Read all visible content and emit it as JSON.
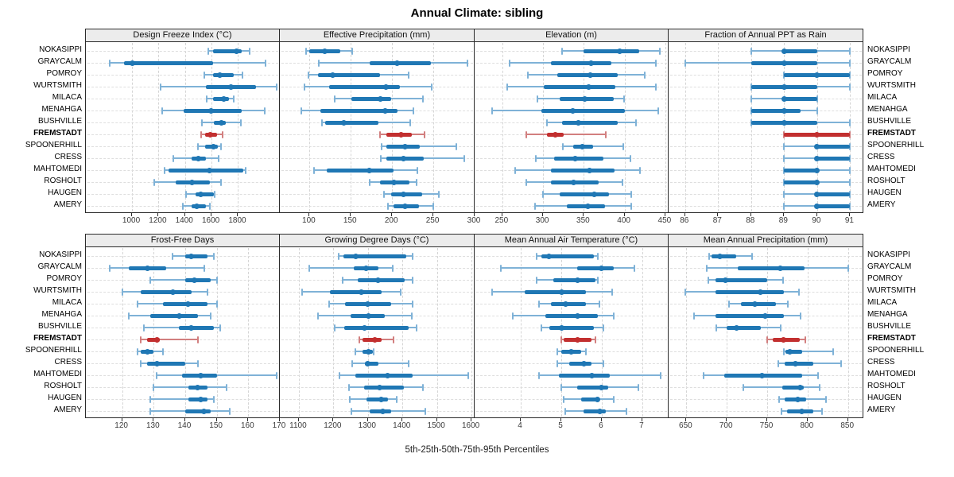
{
  "title": "Annual Climate: sibling",
  "x_axis_label": "5th-25th-50th-75th-95th Percentiles",
  "sites": [
    "NOKASIPPI",
    "GRAYCALM",
    "POMROY",
    "WURTSMITH",
    "MILACA",
    "MENAHGA",
    "BUSHVILLE",
    "FREMSTADT",
    "SPOONERHILL",
    "CRESS",
    "MAHTOMEDI",
    "ROSHOLT",
    "HAUGEN",
    "AMERY"
  ],
  "highlight_site": "FREMSTADT",
  "colors": {
    "series_bar": "#1f77b4",
    "series_whisker": "#7fb2d7",
    "highlight_bar": "#c22f2f",
    "highlight_whisker": "#d27f7f",
    "header_bg": "#ececec",
    "panel_border": "#2b2b2b",
    "gridline": "#d5d5d5"
  },
  "chart_data": {
    "type": "dotplot-intervals",
    "percentiles": [
      "5th",
      "25th",
      "50th",
      "75th",
      "95th"
    ],
    "categories": [
      "NOKASIPPI",
      "GRAYCALM",
      "POMROY",
      "WURTSMITH",
      "MILACA",
      "MENAHGA",
      "BUSHVILLE",
      "FREMSTADT",
      "SPOONERHILL",
      "CRESS",
      "MAHTOMEDI",
      "ROSHOLT",
      "HAUGEN",
      "AMERY"
    ],
    "legend_position": "none",
    "grid": "dashed",
    "panels": [
      {
        "title": "Design Freeze Index (°C)",
        "grid_row": 0,
        "grid_col": 0,
        "xlim": [
          652,
          2115
        ],
        "ticks": [
          1000,
          1200,
          1400,
          1600,
          1800
        ],
        "values": [
          [
            1575,
            1610,
            1790,
            1825,
            1885
          ],
          [
            830,
            940,
            1005,
            1610,
            2005
          ],
          [
            1545,
            1610,
            1665,
            1765,
            1835
          ],
          [
            1215,
            1555,
            1745,
            1935,
            2090
          ],
          [
            1565,
            1610,
            1690,
            1730,
            1770
          ],
          [
            1225,
            1390,
            1595,
            1825,
            2000
          ],
          [
            1525,
            1615,
            1675,
            1710,
            1820
          ],
          [
            1520,
            1550,
            1590,
            1640,
            1685
          ],
          [
            1495,
            1550,
            1615,
            1645,
            1670
          ],
          [
            1310,
            1450,
            1500,
            1555,
            1655
          ],
          [
            1245,
            1275,
            1585,
            1840,
            1860
          ],
          [
            1170,
            1330,
            1455,
            1590,
            1670
          ],
          [
            1410,
            1480,
            1520,
            1615,
            1625
          ],
          [
            1385,
            1450,
            1490,
            1560,
            1590
          ]
        ]
      },
      {
        "title": "Effective Precipitation (mm)",
        "grid_row": 0,
        "grid_col": 1,
        "xlim": [
          64,
          300
        ],
        "ticks": [
          100,
          150,
          200,
          250,
          300
        ],
        "values": [
          [
            96,
            100,
            118,
            137,
            152
          ],
          [
            111,
            173,
            206,
            247,
            291
          ],
          [
            99,
            110,
            128,
            185,
            220
          ],
          [
            94,
            124,
            193,
            209,
            248
          ],
          [
            130,
            151,
            186,
            199,
            237
          ],
          [
            90,
            113,
            192,
            207,
            226
          ],
          [
            115,
            119,
            142,
            183,
            222
          ],
          [
            185,
            193,
            211,
            224,
            239
          ],
          [
            187,
            193,
            216,
            234,
            278
          ],
          [
            186,
            193,
            214,
            238,
            287
          ],
          [
            105,
            121,
            172,
            202,
            231
          ],
          [
            173,
            185,
            202,
            221,
            230
          ],
          [
            190,
            199,
            214,
            236,
            257
          ],
          [
            195,
            202,
            216,
            233,
            250
          ]
        ]
      },
      {
        "title": "Elevation (m)",
        "grid_row": 0,
        "grid_col": 2,
        "xlim": [
          216,
          454
        ],
        "ticks": [
          250,
          300,
          350,
          400,
          450
        ],
        "values": [
          [
            323,
            350,
            394,
            418,
            443
          ],
          [
            259,
            310,
            359,
            384,
            438
          ],
          [
            281,
            317,
            358,
            392,
            425
          ],
          [
            256,
            301,
            356,
            389,
            438
          ],
          [
            293,
            320,
            351,
            387,
            399
          ],
          [
            237,
            298,
            336,
            400,
            441
          ],
          [
            305,
            323,
            343,
            392,
            414
          ],
          [
            279,
            305,
            315,
            325,
            377
          ],
          [
            324,
            337,
            348,
            361,
            398
          ],
          [
            291,
            314,
            339,
            374,
            407
          ],
          [
            266,
            310,
            357,
            388,
            419
          ],
          [
            279,
            310,
            337,
            368,
            397
          ],
          [
            300,
            320,
            363,
            381,
            408
          ],
          [
            290,
            329,
            355,
            376,
            408
          ]
        ]
      },
      {
        "title": "Fraction of Annual PPT as Rain",
        "grid_row": 0,
        "grid_col": 3,
        "xlim": [
          85.5,
          91.4
        ],
        "ticks": [
          86,
          87,
          88,
          89,
          90,
          91
        ],
        "values": [
          [
            88,
            89,
            89,
            90,
            91
          ],
          [
            86,
            88,
            89,
            90,
            91
          ],
          [
            89,
            89,
            90,
            91,
            91
          ],
          [
            88,
            88,
            89,
            90,
            91
          ],
          [
            88,
            89,
            89,
            90,
            90
          ],
          [
            88,
            88,
            89,
            89.5,
            90
          ],
          [
            88,
            88,
            89,
            90,
            91
          ],
          [
            89,
            89,
            90,
            91,
            91
          ],
          [
            89,
            90,
            90,
            91,
            91
          ],
          [
            89,
            90,
            90,
            91,
            91
          ],
          [
            89,
            89,
            90,
            90,
            91
          ],
          [
            89,
            89,
            90,
            90,
            91
          ],
          [
            89,
            90,
            90,
            91,
            91
          ],
          [
            89,
            90,
            90,
            91,
            91
          ]
        ]
      },
      {
        "title": "Frost-Free Days",
        "grid_row": 1,
        "grid_col": 0,
        "xlim": [
          108.5,
          170
        ],
        "ticks": [
          120,
          130,
          140,
          150,
          160,
          170
        ],
        "values": [
          [
            136,
            140,
            142,
            147,
            149
          ],
          [
            116,
            122,
            128,
            134,
            146
          ],
          [
            129,
            140,
            143,
            148,
            150
          ],
          [
            120,
            126,
            136,
            142,
            147
          ],
          [
            125,
            133,
            141,
            147,
            150
          ],
          [
            122,
            129,
            138,
            144,
            148
          ],
          [
            127,
            138,
            142,
            149,
            151
          ],
          [
            126,
            128,
            131,
            132,
            144
          ],
          [
            125,
            126,
            128,
            130,
            133
          ],
          [
            126,
            128,
            131,
            140,
            144
          ],
          [
            131,
            139,
            145,
            150,
            169
          ],
          [
            130,
            141,
            144,
            147,
            153
          ],
          [
            129,
            141,
            145,
            147,
            149
          ],
          [
            129,
            140,
            146,
            148,
            154
          ]
        ]
      },
      {
        "title": "Growing Degree Days (°C)",
        "grid_row": 1,
        "grid_col": 1,
        "xlim": [
          1045,
          1609
        ],
        "ticks": [
          1100,
          1200,
          1300,
          1400,
          1500,
          1600
        ],
        "values": [
          [
            1215,
            1230,
            1265,
            1410,
            1430
          ],
          [
            1130,
            1260,
            1295,
            1330,
            1373
          ],
          [
            1226,
            1270,
            1330,
            1407,
            1430
          ],
          [
            1109,
            1190,
            1280,
            1340,
            1396
          ],
          [
            1187,
            1233,
            1300,
            1368,
            1430
          ],
          [
            1155,
            1249,
            1302,
            1348,
            1428
          ],
          [
            1203,
            1231,
            1290,
            1417,
            1442
          ],
          [
            1275,
            1285,
            1320,
            1340,
            1375
          ],
          [
            1263,
            1285,
            1302,
            1315,
            1317
          ],
          [
            1254,
            1292,
            1300,
            1330,
            1418
          ],
          [
            1217,
            1263,
            1358,
            1430,
            1590
          ],
          [
            1245,
            1290,
            1335,
            1405,
            1460
          ],
          [
            1247,
            1297,
            1338,
            1357,
            1383
          ],
          [
            1252,
            1305,
            1344,
            1367,
            1466
          ]
        ]
      },
      {
        "title": "Mean Annual Air Temperature (°C)",
        "grid_row": 1,
        "grid_col": 2,
        "xlim": [
          2.86,
          7.65
        ],
        "ticks": [
          4,
          5,
          6,
          7
        ],
        "values": [
          [
            4.4,
            4.5,
            4.7,
            5.8,
            5.9
          ],
          [
            3.5,
            5.4,
            6.0,
            6.3,
            6.8
          ],
          [
            4.4,
            4.8,
            5.4,
            5.85,
            5.9
          ],
          [
            3.3,
            4.1,
            5.0,
            5.6,
            6.25
          ],
          [
            4.45,
            4.75,
            5.1,
            5.6,
            5.95
          ],
          [
            3.8,
            4.6,
            5.4,
            5.9,
            6.3
          ],
          [
            4.5,
            4.7,
            5.0,
            5.8,
            6.05
          ],
          [
            5.0,
            5.05,
            5.4,
            5.75,
            5.85
          ],
          [
            4.9,
            5.0,
            5.25,
            5.5,
            5.6
          ],
          [
            4.9,
            5.2,
            5.55,
            5.75,
            6.05
          ],
          [
            4.45,
            4.95,
            5.75,
            6.2,
            7.45
          ],
          [
            5.0,
            5.4,
            6.0,
            6.15,
            6.9
          ],
          [
            5.05,
            5.5,
            5.9,
            5.95,
            6.3
          ],
          [
            5.1,
            5.55,
            5.95,
            6.1,
            6.6
          ]
        ]
      },
      {
        "title": "Mean Annual Precipitation (mm)",
        "grid_row": 1,
        "grid_col": 3,
        "xlim": [
          628,
          869
        ],
        "ticks": [
          650,
          700,
          750,
          800,
          850
        ],
        "values": [
          [
            678,
            681,
            691,
            712,
            731
          ],
          [
            675,
            714,
            766,
            796,
            850
          ],
          [
            677,
            686,
            698,
            750,
            770
          ],
          [
            649,
            686,
            742,
            771,
            789
          ],
          [
            703,
            718,
            735,
            761,
            776
          ],
          [
            659,
            686,
            748,
            771,
            791
          ],
          [
            687,
            700,
            712,
            742,
            767
          ],
          [
            750,
            757,
            770,
            790,
            797
          ],
          [
            771,
            773,
            778,
            793,
            832
          ],
          [
            764,
            772,
            785,
            807,
            841
          ],
          [
            671,
            697,
            744,
            793,
            813
          ],
          [
            720,
            769,
            791,
            795,
            815
          ],
          [
            765,
            772,
            788,
            798,
            823
          ],
          [
            768,
            775,
            793,
            807,
            818
          ]
        ]
      }
    ]
  }
}
